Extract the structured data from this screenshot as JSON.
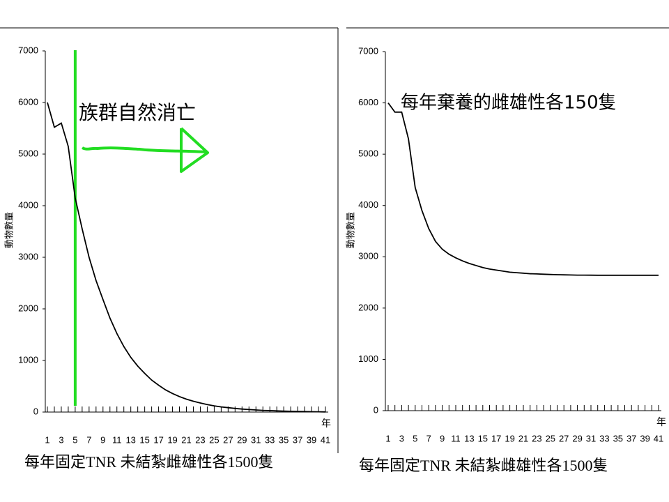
{
  "chart_data": [
    {
      "type": "line",
      "annotation": "族群自然消亡",
      "y_label": "動物數量",
      "x_label": "年",
      "caption": "每年固定TNR 未結紮雌雄性各1500隻",
      "x": [
        1,
        2,
        3,
        4,
        5,
        6,
        7,
        8,
        9,
        10,
        11,
        12,
        13,
        14,
        15,
        16,
        17,
        18,
        19,
        20,
        21,
        22,
        23,
        24,
        25,
        26,
        27,
        28,
        29,
        30,
        31,
        32,
        33,
        34,
        35,
        36,
        37,
        38,
        39,
        40,
        41
      ],
      "values": [
        6000,
        5520,
        5600,
        5150,
        4150,
        3550,
        3000,
        2550,
        2180,
        1820,
        1520,
        1270,
        1060,
        890,
        750,
        620,
        520,
        430,
        360,
        300,
        250,
        210,
        175,
        145,
        120,
        100,
        85,
        70,
        58,
        48,
        40,
        33,
        28,
        23,
        19,
        15,
        12,
        9,
        7,
        5,
        3
      ],
      "color": "#000000",
      "highlight_x": 5,
      "highlight_color": "#22dd22",
      "xlim": [
        1,
        41
      ],
      "xticks": [
        1,
        3,
        5,
        7,
        9,
        11,
        13,
        15,
        17,
        19,
        21,
        23,
        25,
        27,
        29,
        31,
        33,
        35,
        37,
        39,
        41
      ],
      "ylim": [
        0,
        7000
      ],
      "yticks": [
        0,
        1000,
        2000,
        3000,
        4000,
        5000,
        6000,
        7000
      ]
    },
    {
      "type": "line",
      "annotation": "每年棄養的雌雄性各150隻",
      "y_label": "動物數量",
      "x_label": "年",
      "caption": "每年固定TNR 未結紮雌雄性各1500隻",
      "x": [
        1,
        2,
        3,
        4,
        5,
        6,
        7,
        8,
        9,
        10,
        11,
        12,
        13,
        14,
        15,
        16,
        17,
        18,
        19,
        20,
        21,
        22,
        23,
        24,
        25,
        26,
        27,
        28,
        29,
        30,
        31,
        32,
        33,
        34,
        35,
        36,
        37,
        38,
        39,
        40,
        41
      ],
      "values": [
        6000,
        5820,
        5820,
        5300,
        4350,
        3900,
        3550,
        3300,
        3150,
        3050,
        2980,
        2920,
        2870,
        2830,
        2790,
        2760,
        2740,
        2720,
        2700,
        2690,
        2680,
        2670,
        2665,
        2660,
        2655,
        2650,
        2648,
        2645,
        2643,
        2642,
        2641,
        2640,
        2640,
        2640,
        2640,
        2640,
        2640,
        2640,
        2640,
        2640,
        2640
      ],
      "color": "#000000",
      "xlim": [
        1,
        41
      ],
      "xticks": [
        1,
        3,
        5,
        7,
        9,
        11,
        13,
        15,
        17,
        19,
        21,
        23,
        25,
        27,
        29,
        31,
        33,
        35,
        37,
        39,
        41
      ],
      "ylim": [
        0,
        7000
      ],
      "yticks": [
        0,
        1000,
        2000,
        3000,
        4000,
        5000,
        6000,
        7000
      ]
    }
  ]
}
